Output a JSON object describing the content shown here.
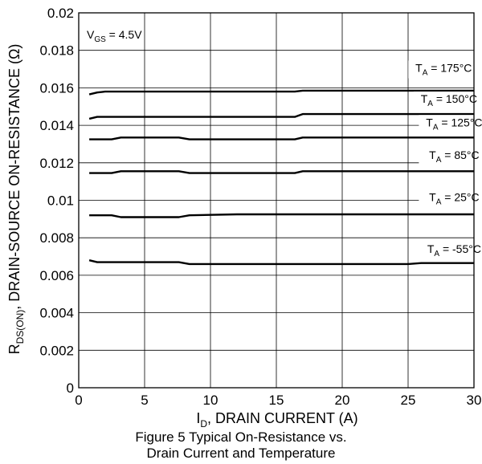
{
  "chart_data": {
    "type": "line",
    "title": "",
    "xlabel": {
      "main": "I",
      "sub": "D",
      "rest": ", DRAIN CURRENT (A)"
    },
    "ylabel": {
      "main": "R",
      "sub": "DS(ON)",
      "rest": ", DRAIN-SOURCE ON-RESISTANCE (Ω)"
    },
    "xlim": [
      0,
      30
    ],
    "ylim": [
      0,
      0.02
    ],
    "x_ticks": [
      {
        "v": 0,
        "label": "0"
      },
      {
        "v": 5,
        "label": "5"
      },
      {
        "v": 10,
        "label": "10"
      },
      {
        "v": 15,
        "label": "15"
      },
      {
        "v": 20,
        "label": "20"
      },
      {
        "v": 25,
        "label": "25"
      },
      {
        "v": 30,
        "label": "30"
      }
    ],
    "y_ticks": [
      {
        "v": 0,
        "label": "0"
      },
      {
        "v": 0.002,
        "label": "0.002"
      },
      {
        "v": 0.004,
        "label": "0.004"
      },
      {
        "v": 0.006,
        "label": "0.006"
      },
      {
        "v": 0.008,
        "label": "0.008"
      },
      {
        "v": 0.01,
        "label": "0.01"
      },
      {
        "v": 0.012,
        "label": "0.012"
      },
      {
        "v": 0.014,
        "label": "0.014"
      },
      {
        "v": 0.016,
        "label": "0.016"
      },
      {
        "v": 0.018,
        "label": "0.018"
      },
      {
        "v": 0.02,
        "label": "0.02"
      }
    ],
    "grid": true,
    "annotation": {
      "main": "V",
      "sub": "GS",
      "rest": " = 4.5V"
    },
    "series": [
      {
        "label_main": "T",
        "label_sub": "A",
        "label_rest": " = 175°C",
        "label_at": [
          27.7,
          0.01685
        ],
        "x": [
          0.8,
          1.4,
          2,
          8,
          16.4,
          17,
          30
        ],
        "y": [
          0.01565,
          0.01575,
          0.0158,
          0.0158,
          0.0158,
          0.01585,
          0.01585
        ]
      },
      {
        "label_main": "T",
        "label_sub": "A",
        "label_rest": " = 150°C",
        "label_at": [
          28.1,
          0.0152
        ],
        "x": [
          0.8,
          1.4,
          2,
          8,
          16.4,
          17,
          30
        ],
        "y": [
          0.01435,
          0.01445,
          0.01445,
          0.01445,
          0.01445,
          0.0146,
          0.0146
        ]
      },
      {
        "label_main": "T",
        "label_sub": "A",
        "label_rest": " = 125°C",
        "label_at": [
          28.5,
          0.01395
        ],
        "x": [
          0.8,
          2.5,
          3.2,
          7.6,
          8.4,
          16.4,
          17,
          30
        ],
        "y": [
          0.01325,
          0.01325,
          0.01335,
          0.01335,
          0.01325,
          0.01325,
          0.01335,
          0.01335
        ]
      },
      {
        "label_main": "T",
        "label_sub": "A",
        "label_rest": " = 85°C",
        "label_at": [
          28.5,
          0.0122
        ],
        "x": [
          0.8,
          2.5,
          3.2,
          7.6,
          8.4,
          16.4,
          17,
          30
        ],
        "y": [
          0.01145,
          0.01145,
          0.01155,
          0.01155,
          0.01145,
          0.01145,
          0.01155,
          0.01155
        ]
      },
      {
        "label_main": "T",
        "label_sub": "A",
        "label_rest": " = 25°C",
        "label_at": [
          28.5,
          0.00995
        ],
        "x": [
          0.8,
          2.5,
          3.2,
          7.6,
          8.4,
          12,
          30
        ],
        "y": [
          0.0092,
          0.0092,
          0.0091,
          0.0091,
          0.0092,
          0.00925,
          0.00925
        ]
      },
      {
        "label_main": "T",
        "label_sub": "A",
        "label_rest": " = -55°C",
        "label_at": [
          28.5,
          0.0072
        ],
        "x": [
          0.8,
          1.4,
          7.6,
          8.4,
          25,
          26,
          30
        ],
        "y": [
          0.0068,
          0.0067,
          0.0067,
          0.0066,
          0.0066,
          0.00665,
          0.00665
        ]
      }
    ]
  },
  "figure_caption": {
    "line1": "Figure 5 Typical On-Resistance vs.",
    "line2": "Drain Current and Temperature"
  }
}
